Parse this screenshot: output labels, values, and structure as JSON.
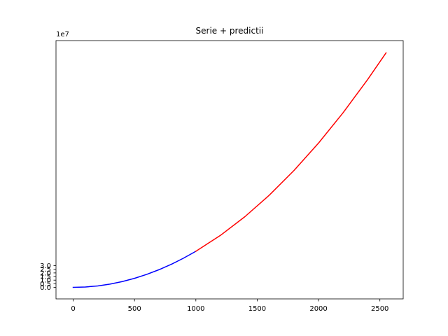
{
  "chart_data": {
    "type": "line",
    "title": "Serie + predictii",
    "xlabel": "",
    "ylabel": "",
    "y_offset_label": "1e7",
    "xlim": [
      -140,
      2690
    ],
    "ylim": [
      -1.6,
      34.2
    ],
    "y_unit_multiplier": 10000000,
    "x_ticks": [
      0,
      500,
      1000,
      1500,
      2000,
      2500
    ],
    "x_tick_labels": [
      "0",
      "500",
      "1000",
      "1500",
      "2000",
      "2500"
    ],
    "y_ticks": [
      0.0,
      0.5,
      1.0,
      1.5,
      2.0,
      2.5,
      3.0
    ],
    "y_tick_labels": [
      "0.0",
      "0.5",
      "1.0",
      "1.5",
      "2.0",
      "2.5",
      "3.0"
    ],
    "grid": false,
    "series": [
      {
        "color": "#0000ff",
        "x": [
          0,
          100,
          200,
          300,
          400,
          500,
          600,
          700,
          800,
          900,
          1000
        ],
        "y": [
          0.0,
          0.05,
          0.2,
          0.45,
          0.8,
          1.25,
          1.8,
          2.45,
          3.2,
          4.05,
          5.0
        ]
      },
      {
        "color": "#ff0000",
        "x": [
          1000,
          1200,
          1400,
          1600,
          1800,
          2000,
          2200,
          2400,
          2550
        ],
        "y": [
          5.0,
          7.2,
          9.8,
          12.8,
          16.2,
          20.0,
          24.2,
          28.8,
          32.5
        ]
      }
    ]
  }
}
